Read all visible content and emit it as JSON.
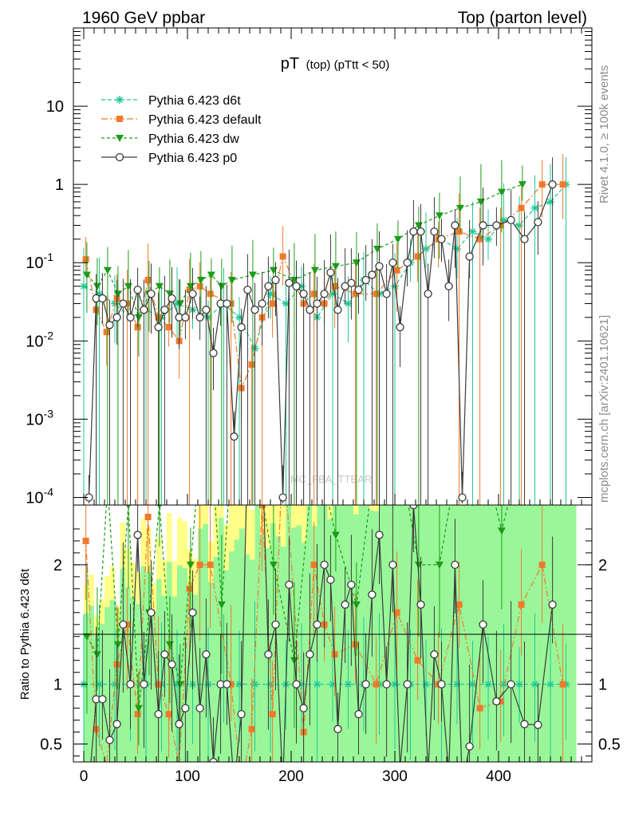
{
  "chart_data": {
    "type": "line",
    "header_left": "1960 GeV ppbar",
    "header_right": "Top (parton level)",
    "title_main": "pT",
    "title_sub": "(top) (pTtt < 50)",
    "side_label_top": "Rivet 4.1.0, ≥ 100k events",
    "side_label_bottom": "mcplots.cern.ch [arXiv:2401.10621]",
    "watermark": "MC_FBA_TTBAR",
    "ratio_ylabel": "Ratio to Pythia 6.423 d6t",
    "x_ticks": [
      "0",
      "100",
      "200",
      "300",
      "400"
    ],
    "y_ticks_main": [
      {
        "base": "10",
        "exp": "-4",
        "v": 0.0001
      },
      {
        "base": "10",
        "exp": "-3",
        "v": 0.001
      },
      {
        "base": "10",
        "exp": "-2",
        "v": 0.01
      },
      {
        "base": "10",
        "exp": "-1",
        "v": 0.1
      },
      {
        "base": "1",
        "exp": "",
        "v": 1
      },
      {
        "base": "10",
        "exp": "",
        "v": 10
      }
    ],
    "y_ticks_ratio": [
      "0.5",
      "1",
      "2"
    ],
    "xlim": [
      -10,
      490
    ],
    "ylim_main": [
      8e-05,
      100
    ],
    "ylim_ratio": [
      0.35,
      2.5
    ],
    "series": [
      {
        "name": "Pythia 6.423 d6t",
        "color": "#1fc895",
        "marker": "star",
        "dash": "5,3",
        "x": [
          0,
          15,
          30,
          45,
          60,
          75,
          90,
          105,
          120,
          135,
          150,
          165,
          180,
          195,
          210,
          225,
          240,
          255,
          270,
          285,
          300,
          315,
          330,
          345,
          360,
          375,
          390,
          405,
          420,
          435,
          450,
          465
        ],
        "y": [
          0.05,
          0.04,
          0.03,
          0.02,
          0.025,
          0.02,
          0.03,
          0.025,
          0.02,
          0.03,
          0.02,
          0.008,
          0.04,
          0.03,
          0.05,
          0.02,
          0.04,
          0.03,
          0.06,
          0.04,
          0.05,
          0.1,
          0.15,
          0.2,
          0.15,
          0.25,
          0.2,
          0.35,
          0.3,
          0.5,
          0.6,
          1.0
        ]
      },
      {
        "name": "Pythia 6.423 default",
        "color": "#f07a2a",
        "marker": "square",
        "dash": "8,3,2,3",
        "x": [
          2,
          12,
          22,
          32,
          42,
          52,
          62,
          72,
          82,
          92,
          102,
          112,
          122,
          142,
          152,
          162,
          172,
          182,
          192,
          212,
          222,
          232,
          242,
          262,
          282,
          302,
          322,
          342,
          362,
          382,
          402,
          422,
          442,
          462
        ],
        "y": [
          0.11,
          0.025,
          0.013,
          0.035,
          0.03,
          0.015,
          0.06,
          0.02,
          0.015,
          0.01,
          0.045,
          0.05,
          0.04,
          0.03,
          0.0025,
          0.005,
          0.02,
          0.03,
          0.12,
          0.03,
          0.04,
          0.03,
          0.05,
          0.04,
          0.04,
          0.08,
          0.12,
          0.2,
          0.25,
          0.2,
          0.3,
          0.5,
          1.0,
          1.0
        ]
      },
      {
        "name": "Pythia 6.423 dw",
        "color": "#1c9c17",
        "marker": "tri",
        "dash": "4,3",
        "x": [
          3,
          13,
          23,
          33,
          43,
          53,
          63,
          73,
          83,
          93,
          103,
          113,
          123,
          133,
          143,
          163,
          183,
          203,
          223,
          243,
          263,
          283,
          303,
          323,
          343,
          363,
          383,
          403,
          423
        ],
        "y": [
          0.07,
          0.05,
          0.08,
          0.04,
          0.05,
          0.02,
          0.04,
          0.05,
          0.04,
          0.03,
          0.05,
          0.06,
          0.07,
          0.05,
          0.06,
          0.07,
          0.08,
          0.06,
          0.08,
          0.09,
          0.1,
          0.15,
          0.2,
          0.3,
          0.4,
          0.5,
          0.6,
          0.8,
          1.0
        ]
      },
      {
        "name": "Pythia 6.423 p0",
        "color": "#3a3a3a",
        "marker": "circle",
        "dash": "",
        "x": [
          5,
          12,
          18,
          25,
          32,
          38,
          45,
          52,
          58,
          65,
          72,
          78,
          85,
          92,
          98,
          105,
          112,
          118,
          125,
          132,
          138,
          145,
          152,
          158,
          165,
          172,
          178,
          185,
          192,
          198,
          205,
          212,
          218,
          225,
          232,
          238,
          245,
          252,
          258,
          265,
          272,
          278,
          285,
          292,
          298,
          305,
          312,
          318,
          325,
          332,
          338,
          345,
          352,
          358,
          365,
          372,
          385,
          398,
          412,
          425,
          438,
          452
        ],
        "y": [
          0.0001,
          0.035,
          0.035,
          0.016,
          0.02,
          0.03,
          0.02,
          0.045,
          0.025,
          0.04,
          0.015,
          0.025,
          0.035,
          0.02,
          0.02,
          0.04,
          0.02,
          0.025,
          0.007,
          0.03,
          0.03,
          0.0006,
          0.015,
          0.045,
          0.025,
          0.03,
          0.05,
          0.06,
          0.0001,
          0.055,
          0.05,
          0.04,
          0.025,
          0.03,
          0.04,
          0.075,
          0.025,
          0.05,
          0.055,
          0.045,
          0.06,
          0.07,
          0.09,
          0.04,
          0.1,
          0.015,
          0.1,
          0.25,
          0.25,
          0.04,
          0.25,
          0.2,
          0.05,
          0.3,
          0.0001,
          0.12,
          0.3,
          0.3,
          0.35,
          0.2,
          0.33,
          1.0
        ]
      }
    ]
  }
}
